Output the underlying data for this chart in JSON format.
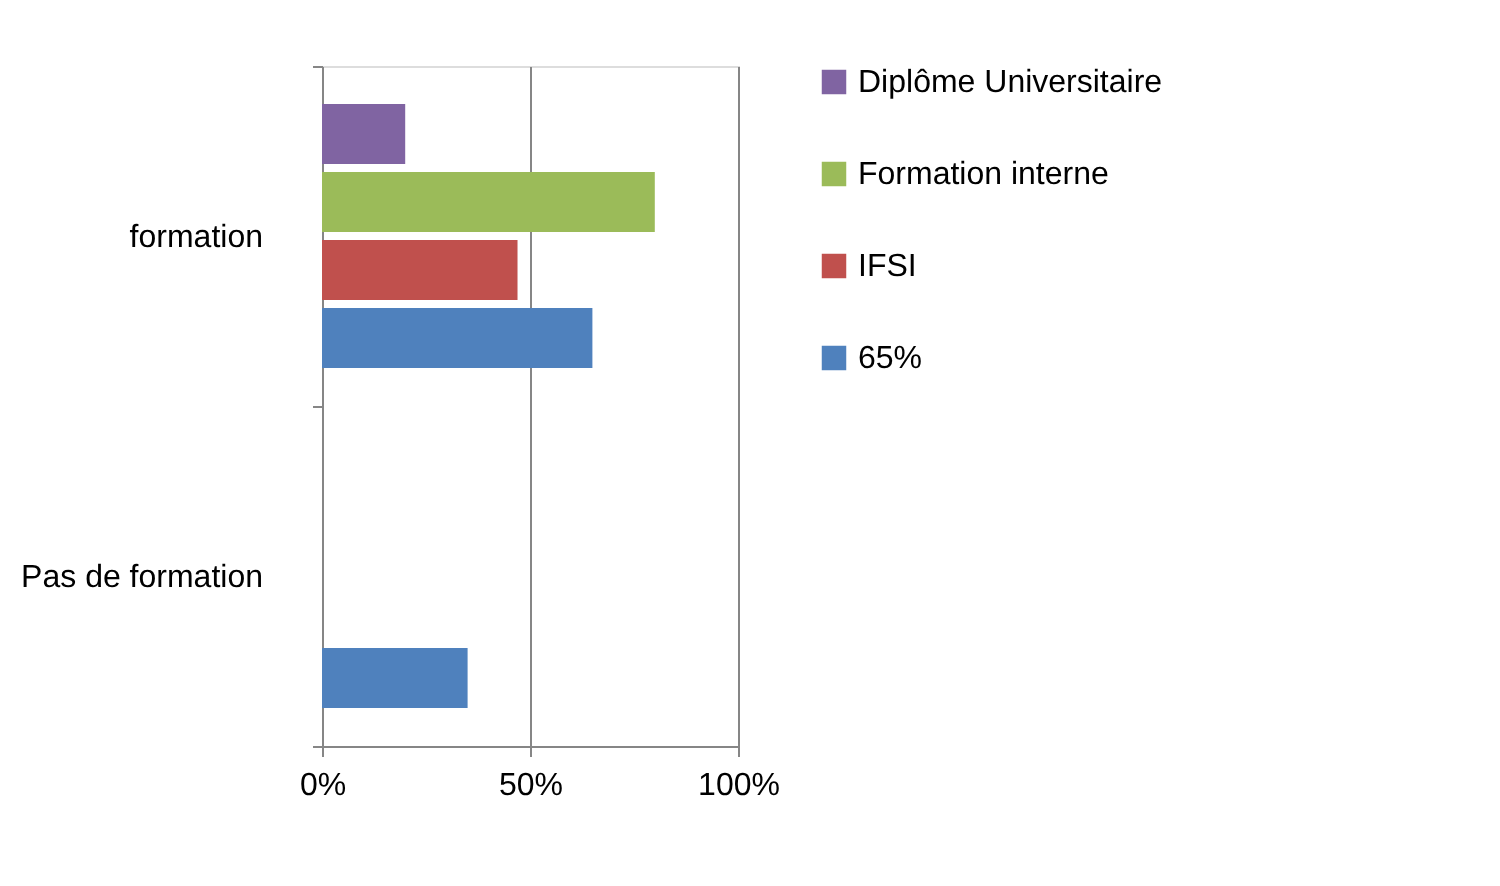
{
  "chart_data": {
    "type": "bar",
    "orientation": "horizontal",
    "categories": [
      "formation",
      "Pas de formation"
    ],
    "series": [
      {
        "name": "Diplôme Universitaire",
        "color": "#8064a2",
        "values": [
          20,
          null
        ]
      },
      {
        "name": "Formation interne",
        "color": "#9bbb59",
        "values": [
          80,
          null
        ]
      },
      {
        "name": "IFSI",
        "color": "#c0504d",
        "values": [
          47,
          null
        ]
      },
      {
        "name": "65%",
        "color": "#4f81bd",
        "values": [
          65,
          35
        ]
      }
    ],
    "xlim": [
      0,
      100
    ],
    "xticks": [
      {
        "value": 0,
        "label": "0%"
      },
      {
        "value": 50,
        "label": "50%"
      },
      {
        "value": 100,
        "label": "100%"
      }
    ],
    "grid": "x",
    "legend": "right"
  }
}
